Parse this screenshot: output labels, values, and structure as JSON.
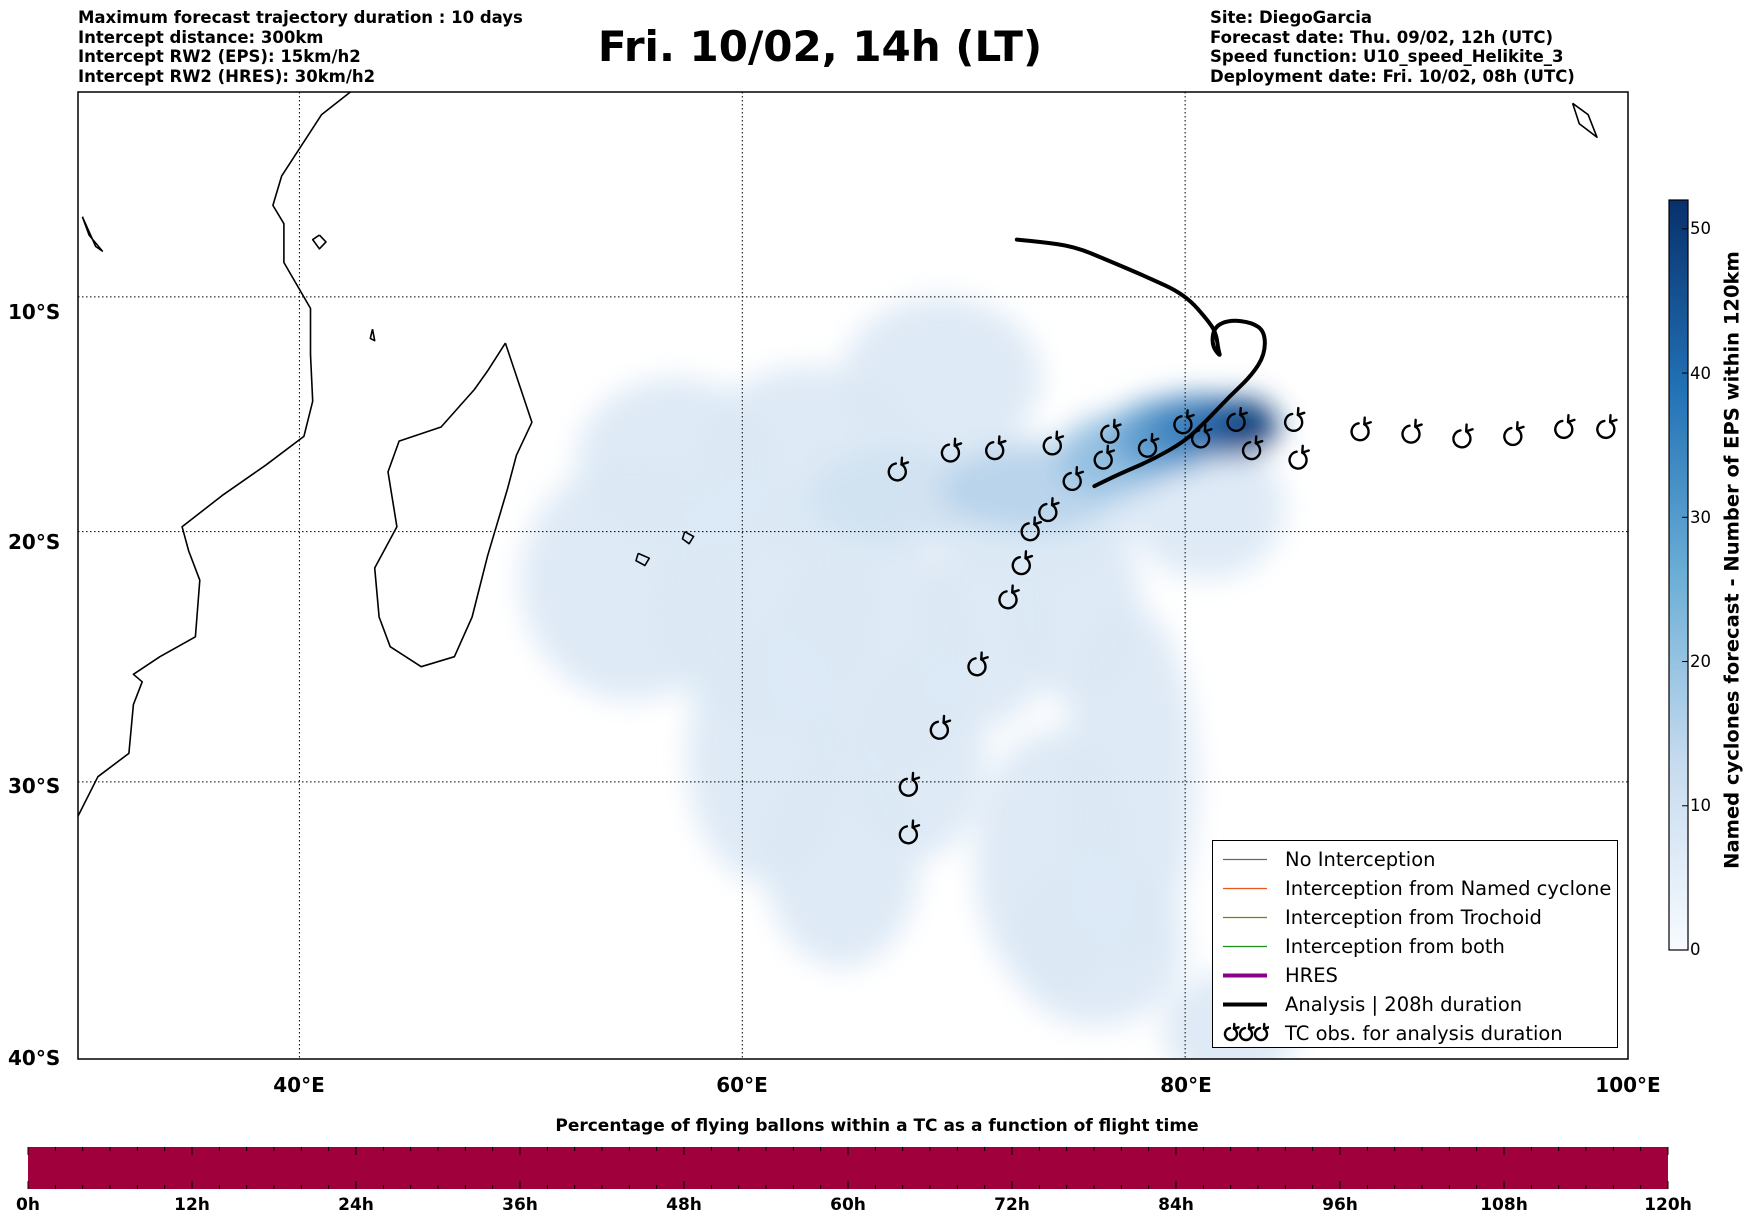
{
  "header_left": {
    "line1": "Maximum forecast trajectory duration : 10 days",
    "line2": "Intercept distance: 300km",
    "line3": "Intercept RW2 (EPS):  15km/h2",
    "line4": "Intercept RW2 (HRES): 30km/h2"
  },
  "title": "Fri. 10/02, 14h (LT)",
  "header_right": {
    "line1": "Site: DiegoGarcia",
    "line2": "Forecast date: Thu. 09/02, 12h (UTC)",
    "line3": "Speed function: U10_speed_Helikite_3",
    "line4": "Deployment date: Fri. 10/02, 08h (UTC)"
  },
  "map": {
    "lon_range": [
      30,
      100
    ],
    "lat_range": [
      -40,
      -1
    ],
    "lat_labels": [
      "10°S",
      "20°S",
      "30°S",
      "40°S"
    ],
    "lat_values": [
      -10,
      -20,
      -30,
      -40
    ],
    "lon_labels": [
      "40°E",
      "60°E",
      "80°E",
      "100°E"
    ],
    "lon_values": [
      40,
      60,
      80,
      100
    ],
    "colors": {
      "density_low": "#e1ecf7",
      "density_mid": "#7fb2da",
      "density_high": "#08306b",
      "analysis": "#000000",
      "hres": "#8b008b",
      "no_interception": "#666666",
      "named_cyclone": "#e8561c",
      "trochoid": "#808000",
      "both": "#1a8f1a"
    },
    "analysis_track": [
      [
        72.4,
        -7.5
      ],
      [
        73.5,
        -7.6
      ],
      [
        75,
        -7.8
      ],
      [
        76.5,
        -8.4
      ],
      [
        78.2,
        -9.1
      ],
      [
        80,
        -9.9
      ],
      [
        81.1,
        -11.1
      ],
      [
        81.4,
        -11.6
      ],
      [
        81.5,
        -12.3
      ],
      [
        81.6,
        -12.6
      ],
      [
        81.2,
        -12.1
      ],
      [
        81.3,
        -11.3
      ],
      [
        82,
        -11
      ],
      [
        83,
        -11.1
      ],
      [
        83.6,
        -11.5
      ],
      [
        83.6,
        -12.5
      ],
      [
        83,
        -13.4
      ],
      [
        82,
        -14.3
      ],
      [
        81,
        -15.3
      ],
      [
        80,
        -16.2
      ],
      [
        78.5,
        -17
      ],
      [
        77,
        -17.6
      ],
      [
        75.9,
        -18.1
      ]
    ],
    "tc_observations": [
      [
        67.0,
        -17.5
      ],
      [
        69.4,
        -16.7
      ],
      [
        71.4,
        -16.6
      ],
      [
        74.0,
        -16.4
      ],
      [
        76.6,
        -15.9
      ],
      [
        79.9,
        -15.5
      ],
      [
        82.3,
        -15.4
      ],
      [
        84.9,
        -15.4
      ],
      [
        87.9,
        -15.8
      ],
      [
        90.2,
        -15.9
      ],
      [
        92.5,
        -16.1
      ],
      [
        94.8,
        -16.0
      ],
      [
        97.1,
        -15.7
      ],
      [
        99.0,
        -15.7
      ],
      [
        76.3,
        -17.0
      ],
      [
        78.3,
        -16.5
      ],
      [
        80.7,
        -16.1
      ],
      [
        83.0,
        -16.6
      ],
      [
        85.1,
        -17.0
      ],
      [
        74.9,
        -17.9
      ],
      [
        73.8,
        -19.2
      ],
      [
        73.0,
        -20.0
      ],
      [
        72.6,
        -21.4
      ],
      [
        72.0,
        -22.8
      ],
      [
        70.6,
        -25.5
      ],
      [
        68.9,
        -28.0
      ],
      [
        67.5,
        -30.2
      ],
      [
        67.5,
        -32.0
      ]
    ],
    "density_blobs": [
      [
        57,
        -17,
        4.5,
        3.5,
        1
      ],
      [
        63,
        -17,
        5,
        4,
        1
      ],
      [
        69,
        -13.5,
        4.5,
        3.5,
        1
      ],
      [
        55,
        -22,
        5,
        5,
        1
      ],
      [
        61,
        -23,
        5,
        5,
        1
      ],
      [
        66,
        -25,
        4.5,
        5,
        1
      ],
      [
        61,
        -29,
        3.5,
        5,
        1
      ],
      [
        64.5,
        -33,
        3.5,
        4,
        1
      ],
      [
        68,
        -29,
        3,
        4,
        1
      ],
      [
        77.5,
        -30,
        3,
        7,
        1
      ],
      [
        74,
        -33,
        3.5,
        5,
        1
      ],
      [
        71,
        -24,
        3,
        4,
        1
      ],
      [
        75,
        -23,
        3,
        4,
        1
      ],
      [
        76,
        -36,
        4,
        3,
        1
      ],
      [
        82,
        -39,
        3,
        2,
        1
      ],
      [
        73,
        -19,
        5,
        3,
        1
      ],
      [
        81,
        -19,
        3.5,
        3,
        1
      ],
      [
        67,
        -18.5,
        4,
        2,
        2
      ],
      [
        73,
        -18.2,
        4,
        1.8,
        3
      ],
      [
        76.8,
        -16.8,
        2.5,
        1.7,
        4
      ],
      [
        79,
        -16,
        2.4,
        1.6,
        5
      ],
      [
        80.5,
        -15.6,
        2.2,
        1.4,
        6
      ],
      [
        82.3,
        -15.6,
        1.9,
        1.3,
        7
      ],
      [
        83,
        -15.5,
        1.1,
        0.9,
        8
      ]
    ],
    "coast_africa": [
      [
        30,
        -31.3
      ],
      [
        30.9,
        -29.8
      ],
      [
        32.3,
        -28.9
      ],
      [
        32.5,
        -27.0
      ],
      [
        32.9,
        -26.1
      ],
      [
        32.5,
        -25.8
      ],
      [
        33.7,
        -25.1
      ],
      [
        35.3,
        -24.3
      ],
      [
        35.5,
        -22.0
      ],
      [
        35.0,
        -20.8
      ],
      [
        34.7,
        -19.8
      ],
      [
        36.5,
        -18.5
      ],
      [
        38.5,
        -17.2
      ],
      [
        40.2,
        -16.0
      ],
      [
        40.6,
        -14.5
      ],
      [
        40.5,
        -12.5
      ],
      [
        40.5,
        -10.5
      ],
      [
        39.3,
        -8.5
      ],
      [
        39.3,
        -6.8
      ],
      [
        38.8,
        -6.0
      ],
      [
        39.2,
        -4.7
      ],
      [
        41.0,
        -2.0
      ],
      [
        42.3,
        -1.0
      ]
    ],
    "coast_madagascar": [
      [
        49.3,
        -12.0
      ],
      [
        50.5,
        -15.4
      ],
      [
        49.8,
        -16.8
      ],
      [
        49.4,
        -18.2
      ],
      [
        48.5,
        -21.0
      ],
      [
        47.8,
        -23.5
      ],
      [
        47.0,
        -25.1
      ],
      [
        45.5,
        -25.5
      ],
      [
        44.1,
        -24.7
      ],
      [
        43.6,
        -23.5
      ],
      [
        43.4,
        -21.5
      ],
      [
        44.4,
        -19.8
      ],
      [
        44.0,
        -17.5
      ],
      [
        44.5,
        -16.2
      ],
      [
        46.4,
        -15.6
      ],
      [
        47.9,
        -14.0
      ],
      [
        48.5,
        -13.2
      ],
      [
        49.3,
        -12.0
      ]
    ],
    "coast_small_islands": [
      [
        [
          55.3,
          -20.9
        ],
        [
          55.8,
          -21.1
        ],
        [
          55.6,
          -21.4
        ],
        [
          55.2,
          -21.2
        ],
        [
          55.3,
          -20.9
        ]
      ],
      [
        [
          57.4,
          -20.0
        ],
        [
          57.8,
          -20.2
        ],
        [
          57.6,
          -20.5
        ],
        [
          57.3,
          -20.3
        ],
        [
          57.4,
          -20.0
        ]
      ],
      [
        [
          43.3,
          -11.4
        ],
        [
          43.4,
          -11.9
        ],
        [
          43.2,
          -11.8
        ],
        [
          43.3,
          -11.4
        ]
      ],
      [
        [
          97.5,
          -1.5
        ],
        [
          98.2,
          -2.0
        ],
        [
          98.6,
          -3.0
        ],
        [
          97.8,
          -2.4
        ],
        [
          97.5,
          -1.5
        ]
      ],
      [
        [
          40.9,
          -7.3
        ],
        [
          41.2,
          -7.6
        ],
        [
          40.9,
          -7.9
        ],
        [
          40.6,
          -7.5
        ],
        [
          40.9,
          -7.3
        ]
      ],
      [
        [
          30.2,
          -6.5
        ],
        [
          30.8,
          -7.8
        ],
        [
          31.1,
          -8.0
        ],
        [
          30.5,
          -7.3
        ],
        [
          30.2,
          -6.5
        ]
      ]
    ]
  },
  "legend": {
    "items": [
      "No Interception",
      "Interception from Named cyclone",
      "Interception from Trochoid",
      "Interception from both",
      "HRES",
      "Analysis | 208h duration",
      "TC obs. for analysis duration"
    ]
  },
  "colorbar": {
    "label": "Named cyclones forecast - Number of EPS within 120km",
    "ticks": [
      "0",
      "10",
      "20",
      "30",
      "40",
      "50"
    ],
    "max": 52,
    "colors": [
      "#f7fbff",
      "#c6dbef",
      "#6baed6",
      "#2171b5",
      "#08306b"
    ]
  },
  "bottom_bar": {
    "title": "Percentage of flying ballons within a TC as a function of flight time",
    "color": "#a0003c",
    "time_labels": [
      "0h",
      "12h",
      "24h",
      "36h",
      "48h",
      "60h",
      "72h",
      "84h",
      "96h",
      "108h",
      "120h"
    ]
  }
}
